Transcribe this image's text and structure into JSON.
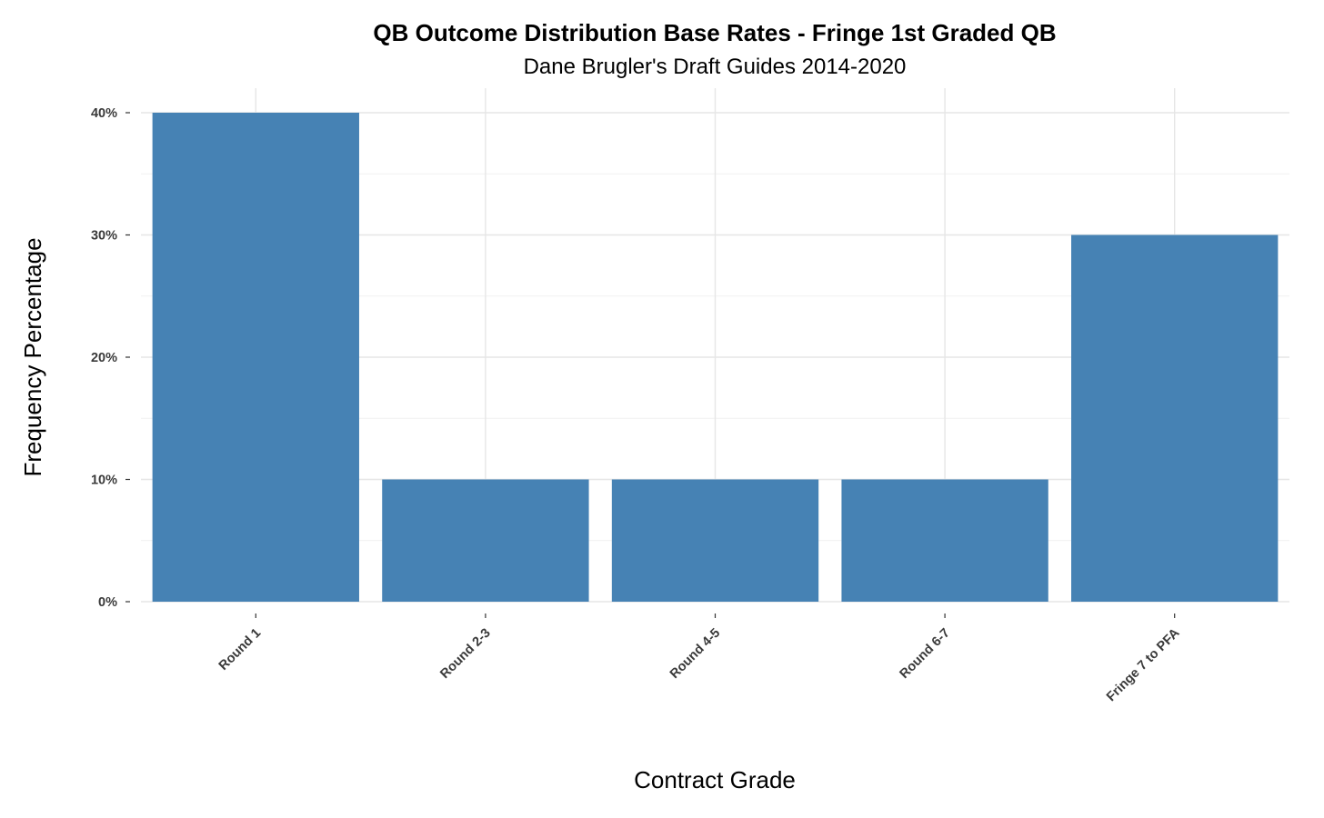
{
  "chart_data": {
    "type": "bar",
    "title": "QB Outcome Distribution Base Rates - Fringe 1st Graded QB",
    "subtitle": "Dane Brugler's Draft Guides 2014-2020",
    "xlabel": "Contract Grade",
    "ylabel": "Frequency Percentage",
    "categories": [
      "Round 1",
      "Round 2-3",
      "Round 4-5",
      "Round 6-7",
      "Fringe 7 to PFA"
    ],
    "values": [
      40,
      10,
      10,
      10,
      30
    ],
    "ylim": [
      0,
      42
    ],
    "yticks": [
      0,
      10,
      20,
      30,
      40
    ],
    "ytick_labels": [
      "0%",
      "10%",
      "20%",
      "30%",
      "40%"
    ],
    "grid": true,
    "legend": "none",
    "bar_color": "#4682b4"
  }
}
